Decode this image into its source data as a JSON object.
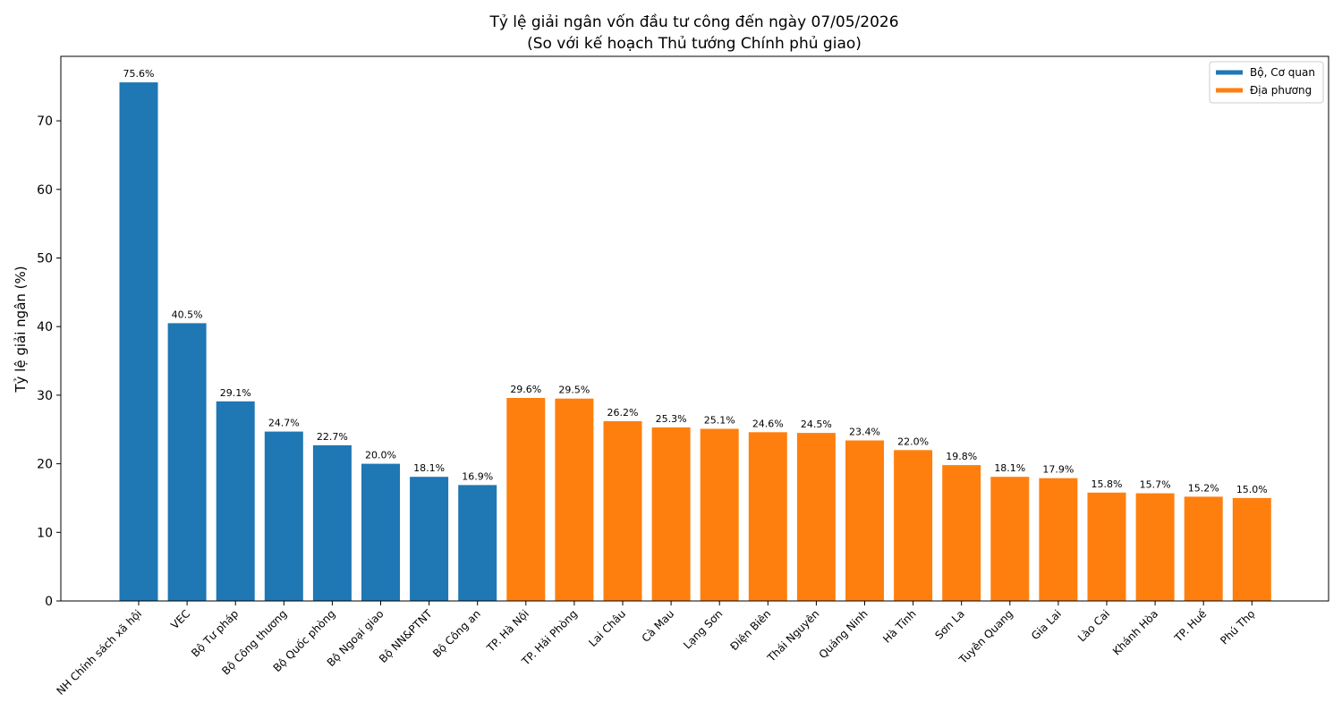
{
  "chart_data": {
    "type": "bar",
    "title": "Tỷ lệ giải ngân vốn đầu tư công đến ngày 07/05/2026",
    "subtitle": "(So với kế hoạch Thủ tướng Chính phủ giao)",
    "xlabel": "",
    "ylabel": "Tỷ lệ giải ngân (%)",
    "ylim": [
      0,
      79.4
    ],
    "yticks": [
      0,
      10,
      20,
      30,
      40,
      50,
      60,
      70
    ],
    "grid": false,
    "legend_position": "top-right",
    "value_suffix": "%",
    "groups": [
      {
        "name": "Bộ, Cơ quan",
        "color": "#1f77b4"
      },
      {
        "name": "Địa phương",
        "color": "#ff7f0e"
      }
    ],
    "categories": [
      "NH Chính sách xã hội",
      "VEC",
      "Bộ Tư pháp",
      "Bộ Công thương",
      "Bộ Quốc phòng",
      "Bộ Ngoại giao",
      "Bộ NN&PTNT",
      "Bộ Công an",
      "TP. Hà Nội",
      "TP. Hải Phòng",
      "Lai Châu",
      "Cà Mau",
      "Lạng Sơn",
      "Điện Biên",
      "Thái Nguyên",
      "Quảng Ninh",
      "Hà Tĩnh",
      "Sơn La",
      "Tuyên Quang",
      "Gia Lai",
      "Lào Cai",
      "Khánh Hòa",
      "TP. Huế",
      "Phú Thọ"
    ],
    "values": [
      75.6,
      40.5,
      29.1,
      24.7,
      22.7,
      20.0,
      18.1,
      16.9,
      29.6,
      29.5,
      26.2,
      25.3,
      25.1,
      24.6,
      24.5,
      23.4,
      22.0,
      19.8,
      18.1,
      17.9,
      15.8,
      15.7,
      15.2,
      15.0
    ],
    "data_labels": [
      "75.6%",
      "40.5%",
      "29.1%",
      "24.7%",
      "22.7%",
      "20.0%",
      "18.1%",
      "16.9%",
      "29.6%",
      "29.5%",
      "26.2%",
      "25.3%",
      "25.1%",
      "24.6%",
      "24.5%",
      "23.4%",
      "22.0%",
      "19.8%",
      "18.1%",
      "17.9%",
      "15.8%",
      "15.7%",
      "15.2%",
      "15.0%"
    ],
    "group_index": [
      0,
      0,
      0,
      0,
      0,
      0,
      0,
      0,
      1,
      1,
      1,
      1,
      1,
      1,
      1,
      1,
      1,
      1,
      1,
      1,
      1,
      1,
      1,
      1
    ]
  }
}
